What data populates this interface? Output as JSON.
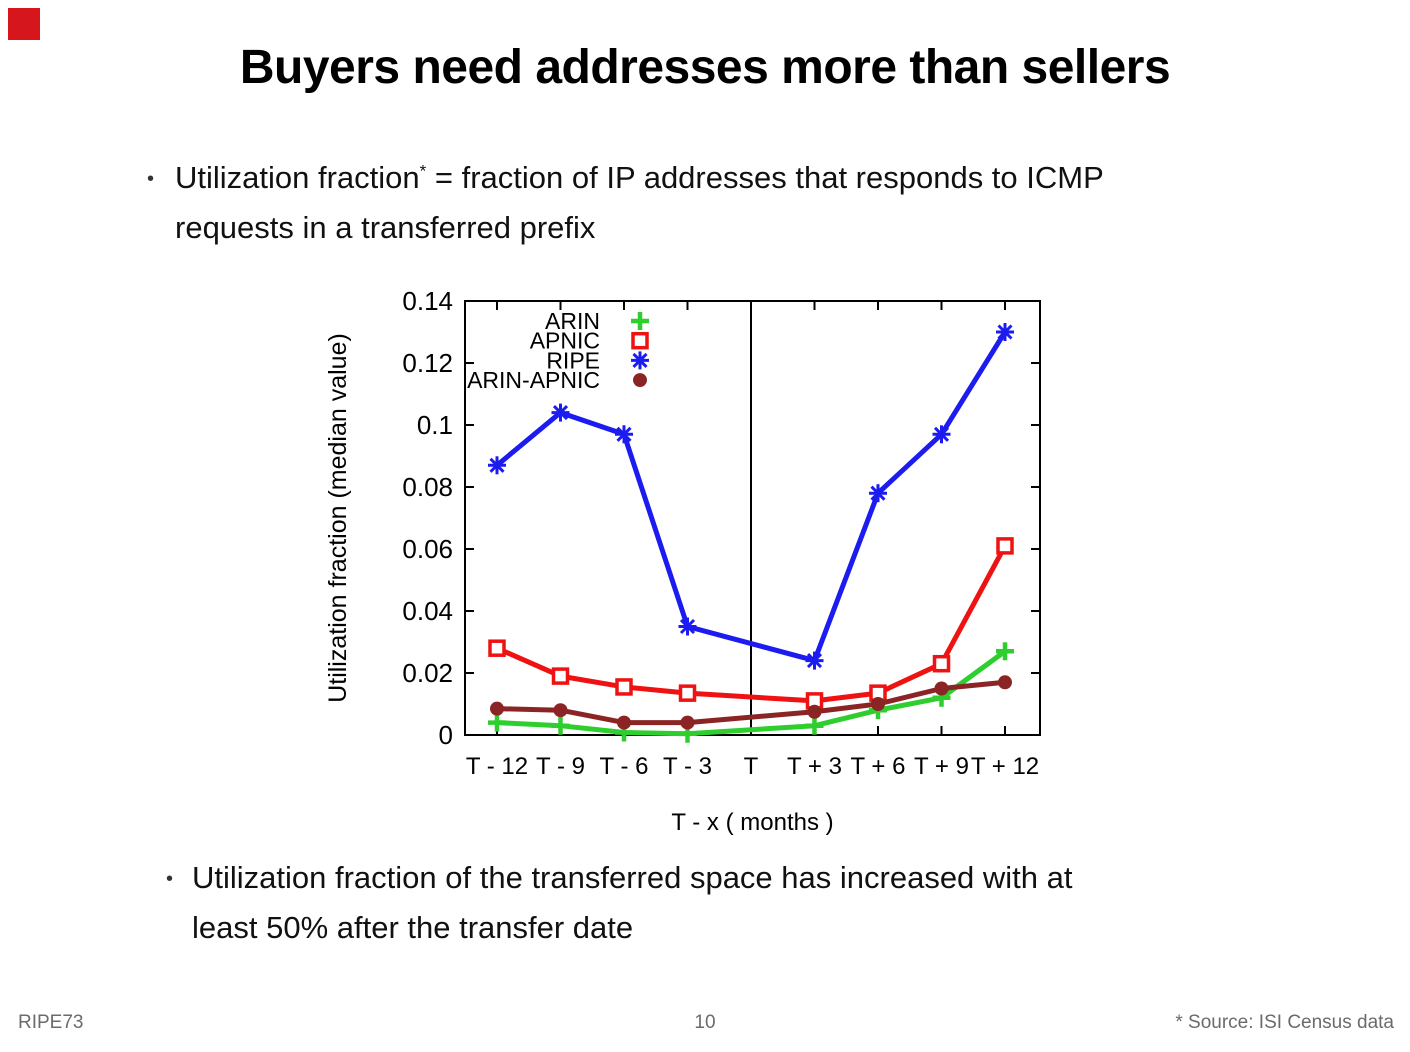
{
  "slide": {
    "title": "Buyers need addresses more than sellers",
    "bullet_glyph": "•",
    "bullet1_line1_pre": "Utilization fraction",
    "bullet1_sup": "*",
    "bullet1_line1_post": " = fraction of IP addresses that responds to ICMP",
    "bullet1_line2": "requests in a transferred prefix",
    "bullet2_line1": "Utilization fraction of the transferred space has increased with at",
    "bullet2_line2": "least 50% after the transfer date"
  },
  "footer": {
    "left": "RIPE73",
    "page": "10",
    "right": "* Source: ISI Census data"
  },
  "decor": {
    "corner_square_color": "#d5161c"
  },
  "chart_data": {
    "type": "line",
    "title": "",
    "xlabel": "T - x ( months )",
    "ylabel": "Utilization fraction (median value)",
    "x_tick_labels": [
      "T - 12",
      "T - 9",
      "T - 6",
      "T - 3",
      "T",
      "T + 3",
      "T + 6",
      "T + 9",
      "T + 12"
    ],
    "x_months": [
      -12,
      -9,
      -6,
      -3,
      3,
      6,
      9,
      12
    ],
    "y_ticks": [
      0,
      0.02,
      0.04,
      0.06,
      0.08,
      0.1,
      0.12,
      0.14
    ],
    "y_tick_labels": [
      "0",
      "0.02",
      "0.04",
      "0.06",
      "0.08",
      "0.1",
      "0.12",
      "0.14"
    ],
    "ylim": [
      0,
      0.14
    ],
    "grid": false,
    "vertical_line_at_label": "T",
    "legend_position": "inside-top-left",
    "axis_color": "#000000",
    "series": [
      {
        "name": "ARIN",
        "color": "#2fce2f",
        "marker": "plus",
        "values": [
          0.004,
          0.003,
          0.0008,
          0.0004,
          0.003,
          0.008,
          0.012,
          0.027
        ]
      },
      {
        "name": "APNIC",
        "color": "#ef1212",
        "marker": "open-square",
        "values": [
          0.028,
          0.019,
          0.0155,
          0.0135,
          0.011,
          0.0135,
          0.023,
          0.061
        ]
      },
      {
        "name": "RIPE",
        "color": "#1c1cf0",
        "marker": "asterisk",
        "values": [
          0.087,
          0.104,
          0.097,
          0.035,
          0.024,
          0.078,
          0.097,
          0.13
        ]
      },
      {
        "name": "ARIN-APNIC",
        "color": "#8b2525",
        "marker": "filled-circle",
        "values": [
          0.0085,
          0.008,
          0.004,
          0.004,
          0.0075,
          0.01,
          0.015,
          0.017
        ]
      }
    ]
  }
}
